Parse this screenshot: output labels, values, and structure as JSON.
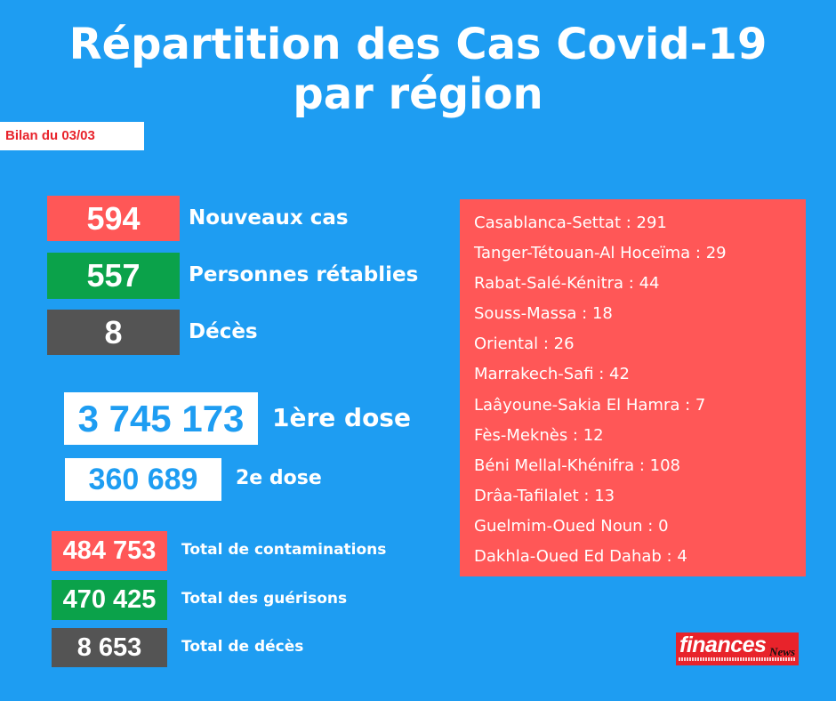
{
  "title": {
    "line1": "Répartition des Cas Covid-19",
    "line2": "par région"
  },
  "bilan": "Bilan du 03/03",
  "daily": [
    {
      "value": "594",
      "label": "Nouveaux cas",
      "color": "#ff5757"
    },
    {
      "value": "557",
      "label": "Personnes rétablies",
      "color": "#0ba24a"
    },
    {
      "value": "8",
      "label": "Décès",
      "color": "#545454"
    }
  ],
  "vaccination": [
    {
      "value": "3 745 173",
      "label": "1ère dose"
    },
    {
      "value": "360 689",
      "label": "2e dose"
    }
  ],
  "totals": [
    {
      "value": "484 753",
      "label": "Total de contaminations",
      "color": "#ff5757"
    },
    {
      "value": "470 425",
      "label": "Total des guérisons",
      "color": "#0ba24a"
    },
    {
      "value": "8 653",
      "label": "Total de décès",
      "color": "#545454"
    }
  ],
  "regions": [
    "Casablanca-Settat : 291",
    "Tanger-Tétouan-Al Hoceïma : 29",
    "Rabat-Salé-Kénitra : 44",
    "Souss-Massa : 18",
    "Oriental : 26",
    "Marrakech-Safi : 42",
    "Laâyoune-Sakia El Hamra : 7",
    "Fès-Meknès : 12",
    "Béni Mellal-Khénifra : 108",
    "Drâa-Tafilalet : 13",
    "Guelmim-Oued Noun : 0",
    "Dakhla-Oued Ed Dahab : 4"
  ],
  "logo": {
    "main": "finances",
    "news": "News"
  },
  "colors": {
    "background": "#1e9df2",
    "red": "#ff5757",
    "green": "#0ba24a",
    "grey": "#545454"
  }
}
